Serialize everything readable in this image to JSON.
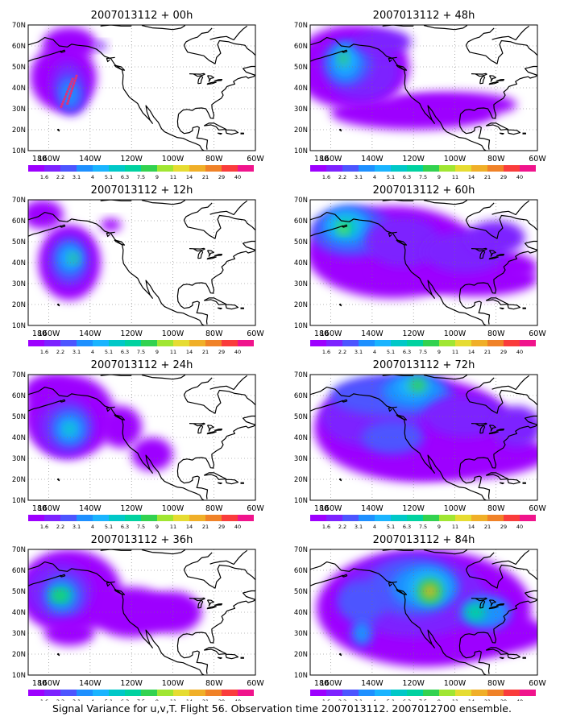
{
  "caption": "Signal Variance for u,v,T. Flight 56. Observation time 2007013112. 2007012700 ensemble.",
  "axes": {
    "lat_labels": [
      "70N",
      "60N",
      "50N",
      "40N",
      "30N",
      "20N",
      "10N"
    ],
    "lon_labels": [
      "180",
      "160W",
      "140W",
      "120W",
      "100W",
      "80W",
      "60W"
    ],
    "lat_range": [
      10,
      70
    ],
    "lon_range": [
      -170,
      -60
    ]
  },
  "colorbar": {
    "labels": [
      "1.6",
      "2.2",
      "3.1",
      "4",
      "5.1",
      "6.3",
      "7.5",
      "9",
      "11",
      "14",
      "21",
      "29",
      "40"
    ],
    "colors": [
      "#9d00ff",
      "#7d22ff",
      "#4d55ff",
      "#1e90ff",
      "#1ab4ff",
      "#00c8c8",
      "#00d2a0",
      "#32d250",
      "#a0e632",
      "#e6dc32",
      "#f0af28",
      "#f08228",
      "#fa3c3c",
      "#f0148c"
    ]
  },
  "panels": [
    {
      "title": "2007013112 + 00h"
    },
    {
      "title": "2007013112 + 48h"
    },
    {
      "title": "2007013112 + 12h"
    },
    {
      "title": "2007013112 + 60h"
    },
    {
      "title": "2007013112 + 24h"
    },
    {
      "title": "2007013112 + 72h"
    },
    {
      "title": "2007013112 + 36h"
    },
    {
      "title": "2007013112 + 84h"
    }
  ]
}
